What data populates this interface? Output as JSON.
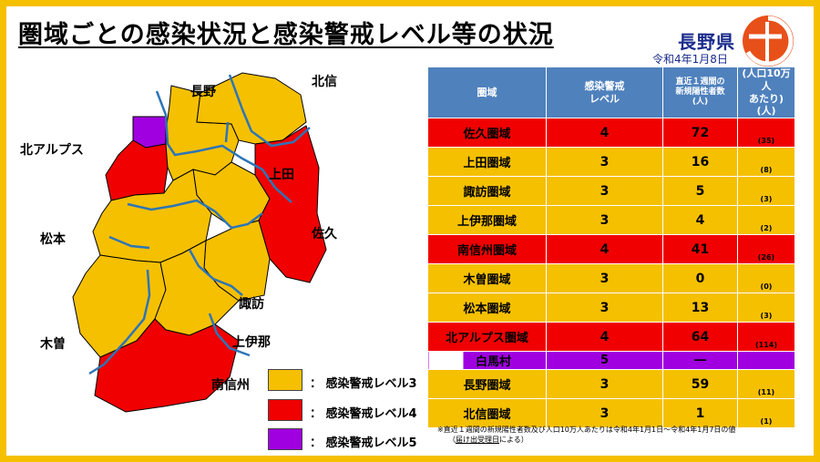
{
  "header": {
    "title": "圏域ごとの感染状況と感染警戒レベル等の状況",
    "prefecture": "長野県",
    "date": "令和4年1月8日"
  },
  "colors": {
    "level3": "#f5c000",
    "level4": "#f00000",
    "level5": "#a000e0",
    "header_blue": "#4f81bd",
    "border_yellow": "#f5c000",
    "logo_orange": "#e8501a"
  },
  "icons": {
    "logo": "nagano-prefecture-logo-icon",
    "map": "nagano-region-map"
  },
  "map": {
    "labels": {
      "nagano": "長野",
      "hokushin": "北信",
      "kita_alps": "北アルプス",
      "ueda": "上田",
      "saku": "佐久",
      "matsumoto": "松本",
      "suwa": "諏訪",
      "kiso": "木曽",
      "kamiina": "上伊那",
      "minamishinshu": "南信州"
    }
  },
  "legend": [
    {
      "label": "感染警戒レベル3",
      "color": "#f5c000"
    },
    {
      "label": "感染警戒レベル4",
      "color": "#f00000"
    },
    {
      "label": "感染警戒レベル5",
      "color": "#a000e0"
    }
  ],
  "table": {
    "headers": {
      "area": "圏域",
      "level_line1": "感染警戒",
      "level_line2": "レベル",
      "count_line1": "直近１週間の",
      "count_line2": "新規陽性者数",
      "count_line3": "(人)",
      "per_line1": "(人口10万人",
      "per_line2": "あたり)",
      "per_line3": "(人)"
    },
    "rows": [
      {
        "area": "佐久圏域",
        "level": "4",
        "count": "72",
        "per100k": "(35)"
      },
      {
        "area": "上田圏域",
        "level": "3",
        "count": "16",
        "per100k": "(8)"
      },
      {
        "area": "諏訪圏域",
        "level": "3",
        "count": "5",
        "per100k": "(3)"
      },
      {
        "area": "上伊那圏域",
        "level": "3",
        "count": "4",
        "per100k": "(2)"
      },
      {
        "area": "南信州圏域",
        "level": "4",
        "count": "41",
        "per100k": "(26)"
      },
      {
        "area": "木曽圏域",
        "level": "3",
        "count": "0",
        "per100k": "(0)"
      },
      {
        "area": "松本圏域",
        "level": "3",
        "count": "13",
        "per100k": "(3)"
      },
      {
        "area": "北アルプス圏域",
        "level": "4",
        "count": "64",
        "per100k": "(114)"
      },
      {
        "area": "長野圏域",
        "level": "3",
        "count": "59",
        "per100k": "(11)"
      },
      {
        "area": "北信圏域",
        "level": "3",
        "count": "1",
        "per100k": "(1)"
      }
    ],
    "sub_row": {
      "area": "白馬村",
      "level": "5",
      "count": "―"
    }
  },
  "footnote": {
    "line1": "※直近１週間の新規陽性者数及び人口10万人あたりは令和4年1月1日～令和4年1月7日の値",
    "line2_open": "（",
    "line2_underlined": "届け出受理日",
    "line2_close": "による）"
  }
}
